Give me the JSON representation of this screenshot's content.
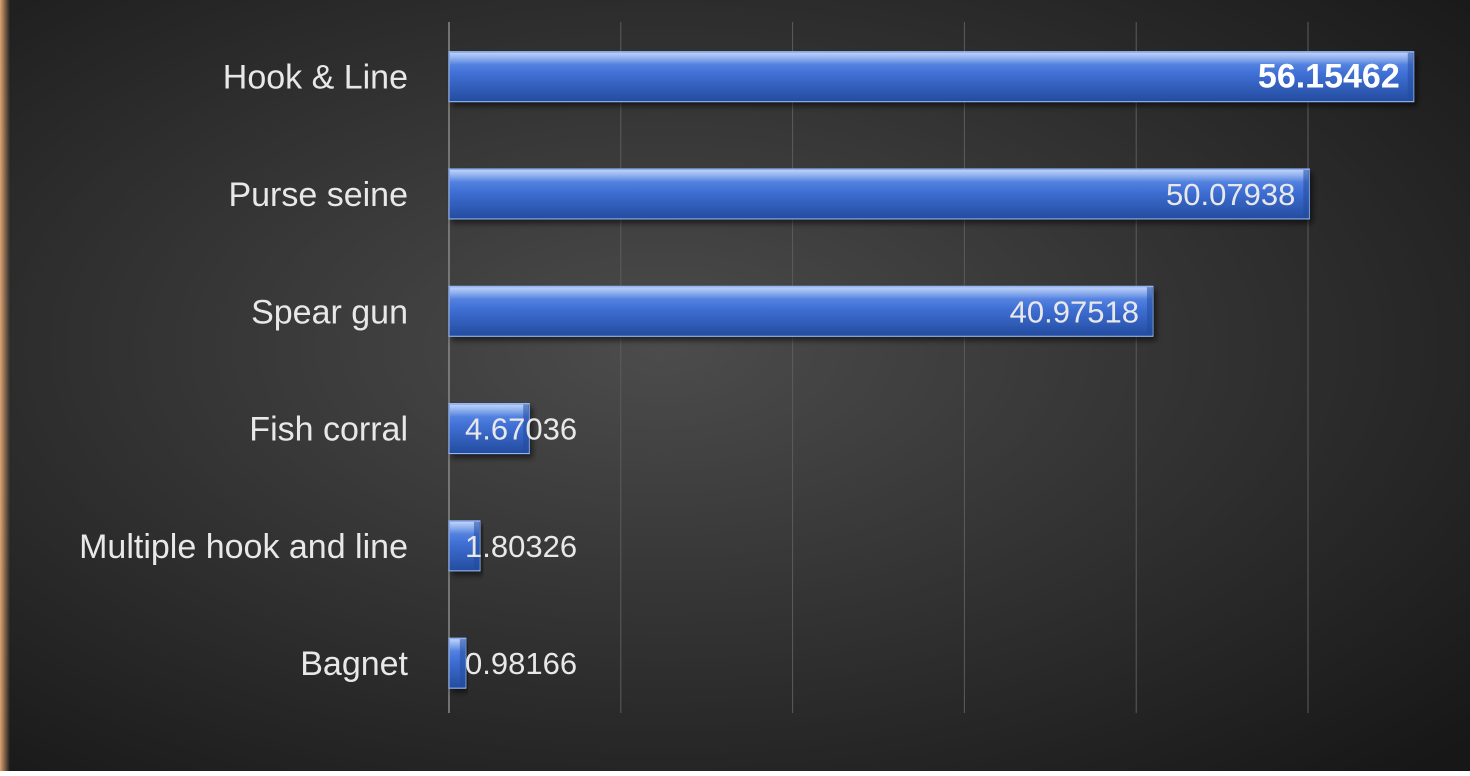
{
  "chart_data": {
    "type": "bar",
    "orientation": "horizontal",
    "categories": [
      "Hook & Line",
      "Purse seine",
      "Spear gun",
      "Fish corral",
      "Multiple hook and line",
      "Bagnet"
    ],
    "values": [
      56.15462,
      50.07938,
      40.97518,
      4.67036,
      1.80326,
      0.98166
    ],
    "data_labels": [
      "56.15462",
      "50.07938",
      "40.97518",
      "4.67036",
      "1.80326",
      "0.98166"
    ],
    "highlighted_label": "56.15462",
    "xlim": [
      0,
      60
    ],
    "x_gridline_step": 10,
    "grid": true,
    "legend": "none",
    "title": "",
    "xlabel": "",
    "ylabel": "",
    "colors": {
      "bar_light": "#6e9bef",
      "bar_mid": "#3f6fd4",
      "bar_dark": "#234c9f",
      "bar_edge": "#9cbcf6",
      "background_light": "#4c4c4c",
      "background_dark": "#171717",
      "gridline": "#5c5c5c",
      "axis_line": "#8a8a8a",
      "text": "#e8e8e8",
      "highlight_text": "#ffffff",
      "left_accent": "#f3b27a"
    }
  }
}
